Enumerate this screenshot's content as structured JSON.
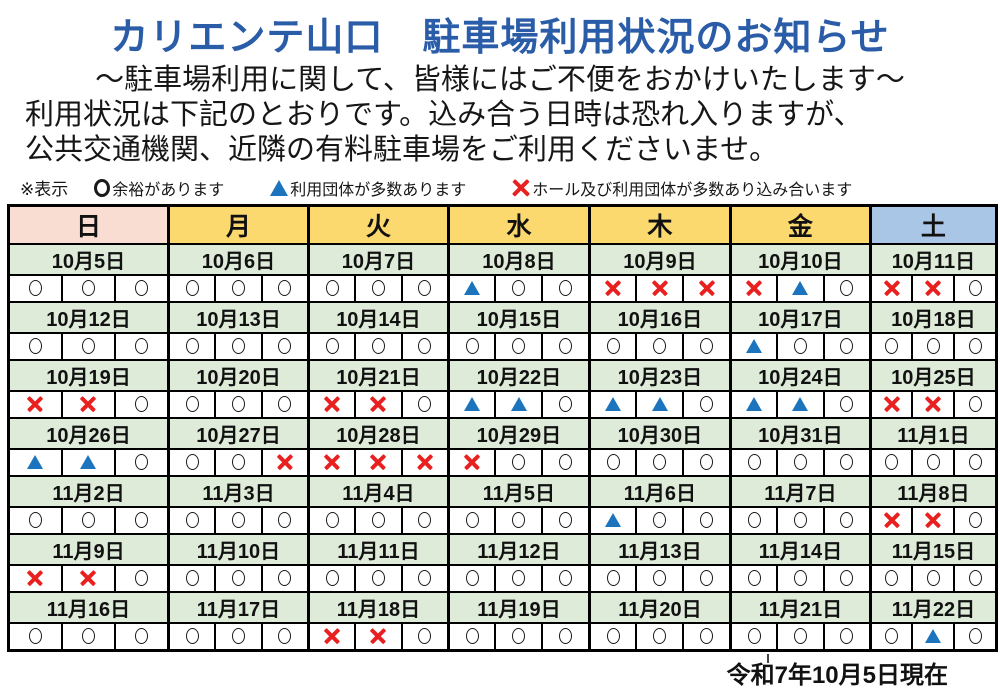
{
  "page": {
    "title": "カリエンテ山口　駐車場利用状況のお知らせ",
    "intro_line1": "～駐車場利用に関して、皆様にはご不便をおかけいたします～",
    "intro_line2": "利用状況は下記のとおりです。込み合う日時は恐れ入りますが、",
    "intro_line3": "公共交通機関、近隣の有料駐車場をご利用くださいませ。",
    "footer_date_note": "令和7年10月5日現在"
  },
  "legend": {
    "prefix": "※表示",
    "items": [
      {
        "symbol": "circle",
        "label": "余裕があります"
      },
      {
        "symbol": "triangle",
        "label": "利用団体が多数あります"
      },
      {
        "symbol": "cross",
        "label": "ホール及び利用団体が多数あり込み合います"
      }
    ]
  },
  "colors": {
    "title_text": "#2A5CA8",
    "sunday_header_bg": "#F9DCD2",
    "weekday_header_bg": "#FBD96E",
    "saturday_header_bg": "#A9C6E6",
    "date_cell_bg": "#DFEBD9",
    "triangle_blue": "#1C74BE",
    "cross_red": "#E8201F",
    "circle_outline": "#1A1A1A",
    "table_border": "#000000"
  },
  "calendar": {
    "weekday_headers": [
      {
        "label": "日",
        "bg": "#F9DCD2"
      },
      {
        "label": "月",
        "bg": "#FBD96E"
      },
      {
        "label": "火",
        "bg": "#FBD96E"
      },
      {
        "label": "水",
        "bg": "#FBD96E"
      },
      {
        "label": "木",
        "bg": "#FBD96E"
      },
      {
        "label": "金",
        "bg": "#FBD96E"
      },
      {
        "label": "土",
        "bg": "#A9C6E6"
      }
    ],
    "symbol_codes": {
      "o": "circle",
      "t": "triangle",
      "x": "cross"
    },
    "weeks": [
      {
        "days": [
          {
            "date": "10月5日",
            "slots": [
              "o",
              "o",
              "o"
            ]
          },
          {
            "date": "10月6日",
            "slots": [
              "o",
              "o",
              "o"
            ]
          },
          {
            "date": "10月7日",
            "slots": [
              "o",
              "o",
              "o"
            ]
          },
          {
            "date": "10月8日",
            "slots": [
              "t",
              "o",
              "o"
            ]
          },
          {
            "date": "10月9日",
            "slots": [
              "x",
              "x",
              "x"
            ]
          },
          {
            "date": "10月10日",
            "slots": [
              "x",
              "t",
              "o"
            ]
          },
          {
            "date": "10月11日",
            "slots": [
              "x",
              "x",
              "o"
            ]
          }
        ]
      },
      {
        "days": [
          {
            "date": "10月12日",
            "slots": [
              "o",
              "o",
              "o"
            ]
          },
          {
            "date": "10月13日",
            "slots": [
              "o",
              "o",
              "o"
            ]
          },
          {
            "date": "10月14日",
            "slots": [
              "o",
              "o",
              "o"
            ]
          },
          {
            "date": "10月15日",
            "slots": [
              "o",
              "o",
              "o"
            ]
          },
          {
            "date": "10月16日",
            "slots": [
              "o",
              "o",
              "o"
            ]
          },
          {
            "date": "10月17日",
            "slots": [
              "t",
              "o",
              "o"
            ]
          },
          {
            "date": "10月18日",
            "slots": [
              "o",
              "o",
              "o"
            ]
          }
        ]
      },
      {
        "days": [
          {
            "date": "10月19日",
            "slots": [
              "x",
              "x",
              "o"
            ]
          },
          {
            "date": "10月20日",
            "slots": [
              "o",
              "o",
              "o"
            ]
          },
          {
            "date": "10月21日",
            "slots": [
              "x",
              "x",
              "o"
            ]
          },
          {
            "date": "10月22日",
            "slots": [
              "t",
              "t",
              "o"
            ]
          },
          {
            "date": "10月23日",
            "slots": [
              "t",
              "t",
              "o"
            ]
          },
          {
            "date": "10月24日",
            "slots": [
              "t",
              "t",
              "o"
            ]
          },
          {
            "date": "10月25日",
            "slots": [
              "x",
              "x",
              "o"
            ]
          }
        ]
      },
      {
        "days": [
          {
            "date": "10月26日",
            "slots": [
              "t",
              "t",
              "o"
            ]
          },
          {
            "date": "10月27日",
            "slots": [
              "o",
              "o",
              "x"
            ]
          },
          {
            "date": "10月28日",
            "slots": [
              "x",
              "x",
              "x"
            ]
          },
          {
            "date": "10月29日",
            "slots": [
              "x",
              "o",
              "o"
            ]
          },
          {
            "date": "10月30日",
            "slots": [
              "o",
              "o",
              "o"
            ]
          },
          {
            "date": "10月31日",
            "slots": [
              "o",
              "o",
              "o"
            ]
          },
          {
            "date": "11月1日",
            "slots": [
              "o",
              "o",
              "o"
            ]
          }
        ]
      },
      {
        "days": [
          {
            "date": "11月2日",
            "slots": [
              "o",
              "o",
              "o"
            ]
          },
          {
            "date": "11月3日",
            "slots": [
              "o",
              "o",
              "o"
            ]
          },
          {
            "date": "11月4日",
            "slots": [
              "o",
              "o",
              "o"
            ]
          },
          {
            "date": "11月5日",
            "slots": [
              "o",
              "o",
              "o"
            ]
          },
          {
            "date": "11月6日",
            "slots": [
              "t",
              "o",
              "o"
            ]
          },
          {
            "date": "11月7日",
            "slots": [
              "o",
              "o",
              "o"
            ]
          },
          {
            "date": "11月8日",
            "slots": [
              "x",
              "x",
              "o"
            ]
          }
        ]
      },
      {
        "days": [
          {
            "date": "11月9日",
            "slots": [
              "x",
              "x",
              "o"
            ]
          },
          {
            "date": "11月10日",
            "slots": [
              "o",
              "o",
              "o"
            ]
          },
          {
            "date": "11月11日",
            "slots": [
              "o",
              "o",
              "o"
            ]
          },
          {
            "date": "11月12日",
            "slots": [
              "o",
              "o",
              "o"
            ]
          },
          {
            "date": "11月13日",
            "slots": [
              "o",
              "o",
              "o"
            ]
          },
          {
            "date": "11月14日",
            "slots": [
              "o",
              "o",
              "o"
            ]
          },
          {
            "date": "11月15日",
            "slots": [
              "o",
              "o",
              "o"
            ]
          }
        ]
      },
      {
        "days": [
          {
            "date": "11月16日",
            "slots": [
              "o",
              "o",
              "o"
            ]
          },
          {
            "date": "11月17日",
            "slots": [
              "o",
              "o",
              "o"
            ]
          },
          {
            "date": "11月18日",
            "slots": [
              "x",
              "x",
              "o"
            ]
          },
          {
            "date": "11月19日",
            "slots": [
              "o",
              "o",
              "o"
            ]
          },
          {
            "date": "11月20日",
            "slots": [
              "o",
              "o",
              "o"
            ]
          },
          {
            "date": "11月21日",
            "slots": [
              "o",
              "o",
              "o"
            ]
          },
          {
            "date": "11月22日",
            "slots": [
              "o",
              "t",
              "o"
            ]
          }
        ]
      }
    ]
  }
}
